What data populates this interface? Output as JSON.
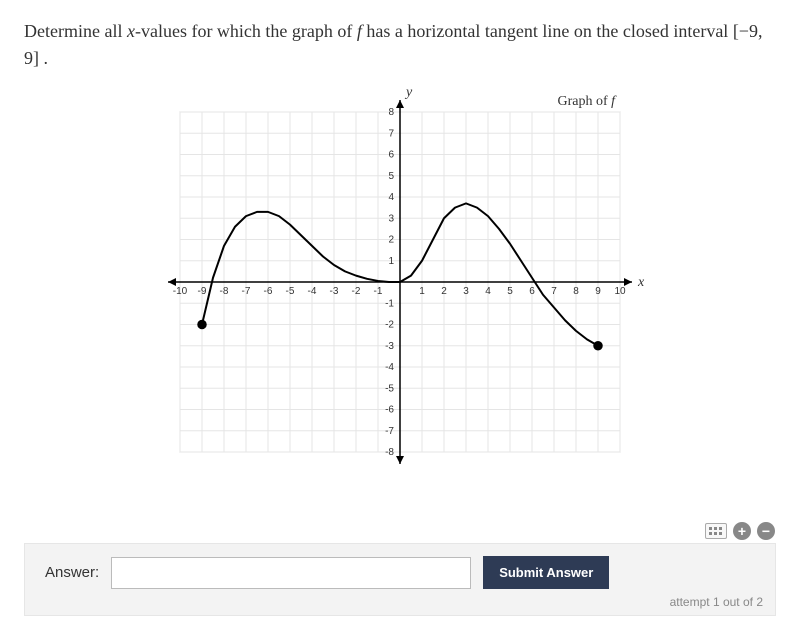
{
  "question": {
    "prefix": "Determine all ",
    "var1": "x",
    "mid1": "-values for which the graph of ",
    "func": "f",
    "mid2": " has a horizontal tangent line on the closed interval ",
    "interval": "[−9, 9]",
    "suffix": " ."
  },
  "graph": {
    "title_prefix": "Graph of ",
    "title_func": "f",
    "x_label": "x",
    "y_label": "y",
    "xlim": [
      -10,
      10
    ],
    "ylim": [
      -8,
      8
    ],
    "xticks": [
      -10,
      -9,
      -8,
      -7,
      -6,
      -5,
      -4,
      -3,
      -2,
      -1,
      1,
      2,
      3,
      4,
      5,
      6,
      7,
      8,
      9,
      10
    ],
    "yticks": [
      -8,
      -7,
      -6,
      -5,
      -4,
      -3,
      -2,
      -1,
      1,
      2,
      3,
      4,
      5,
      6,
      7,
      8
    ],
    "grid_color": "#e5e5e5",
    "grid_border_color": "#d5d5d5",
    "axis_color": "#000000",
    "curve_color": "#000000",
    "curve_width": 2,
    "background": "#ffffff",
    "tick_fontsize": 10,
    "curve_points": [
      [
        -9,
        -2
      ],
      [
        -8.5,
        0.2
      ],
      [
        -8,
        1.7
      ],
      [
        -7.5,
        2.6
      ],
      [
        -7,
        3.1
      ],
      [
        -6.5,
        3.3
      ],
      [
        -6,
        3.3
      ],
      [
        -5.5,
        3.1
      ],
      [
        -5,
        2.7
      ],
      [
        -4.5,
        2.2
      ],
      [
        -4,
        1.7
      ],
      [
        -3.5,
        1.2
      ],
      [
        -3,
        0.8
      ],
      [
        -2.5,
        0.5
      ],
      [
        -2,
        0.3
      ],
      [
        -1.5,
        0.15
      ],
      [
        -1,
        0.05
      ],
      [
        -0.5,
        0.0
      ],
      [
        0,
        0.0
      ],
      [
        0.5,
        0.3
      ],
      [
        1,
        1.0
      ],
      [
        1.5,
        2.0
      ],
      [
        2,
        3.0
      ],
      [
        2.5,
        3.5
      ],
      [
        3,
        3.7
      ],
      [
        3.5,
        3.5
      ],
      [
        4,
        3.1
      ],
      [
        4.5,
        2.5
      ],
      [
        5,
        1.8
      ],
      [
        5.5,
        1.0
      ],
      [
        6,
        0.2
      ],
      [
        6.5,
        -0.6
      ],
      [
        7,
        -1.2
      ],
      [
        7.5,
        -1.8
      ],
      [
        8,
        -2.3
      ],
      [
        8.5,
        -2.7
      ],
      [
        9,
        -3
      ]
    ],
    "endpoint_markers": [
      {
        "x": -9,
        "y": -2,
        "filled": true
      },
      {
        "x": 9,
        "y": -3,
        "filled": true
      }
    ],
    "marker_radius": 4
  },
  "answer_section": {
    "label": "Answer:",
    "input_value": "",
    "submit_label": "Submit Answer",
    "attempt_text": "attempt 1 out of 2"
  },
  "colors": {
    "page_bg": "#ffffff",
    "text": "#333333",
    "answer_bg": "#f3f3f3",
    "answer_border": "#e6e6e6",
    "button_bg": "#2e3b55",
    "button_text": "#ffffff",
    "muted": "#888888"
  }
}
